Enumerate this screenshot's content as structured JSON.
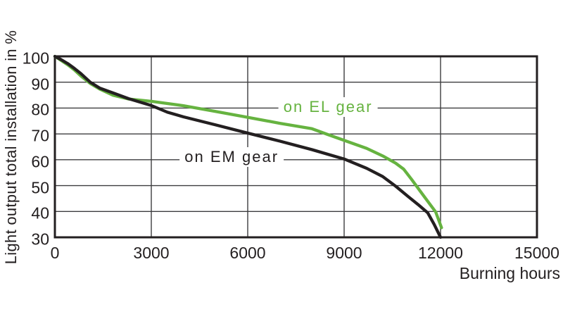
{
  "colors": {
    "background": "#ffffff",
    "grid": "#3d3d3f",
    "axis": "#231f20",
    "text": "#231f20"
  },
  "chart_data": {
    "type": "line",
    "title": "",
    "xlabel": "Burning hours",
    "ylabel": "Light output total installation in %",
    "xlim": [
      0,
      15000
    ],
    "ylim": [
      30,
      100
    ],
    "x_ticks": [
      0,
      3000,
      6000,
      9000,
      12000,
      15000
    ],
    "y_ticks": [
      100,
      90,
      80,
      70,
      60,
      50,
      40,
      30
    ],
    "grid": true,
    "legend_position": "inline-curve-labels",
    "series": [
      {
        "id": "el-gear",
        "name": "on EL gear",
        "color": "#66b340",
        "label_anchor": {
          "x": 8500,
          "y": 80.3
        },
        "points": [
          [
            0,
            100
          ],
          [
            200,
            98.4
          ],
          [
            400,
            96.7
          ],
          [
            600,
            94.8
          ],
          [
            810,
            92.4
          ],
          [
            1100,
            89.5
          ],
          [
            1400,
            87.3
          ],
          [
            1800,
            85.0
          ],
          [
            2300,
            83.5
          ],
          [
            3000,
            82.6
          ],
          [
            4000,
            80.9
          ],
          [
            5000,
            78.7
          ],
          [
            6000,
            76.4
          ],
          [
            7000,
            74.1
          ],
          [
            8000,
            72.0
          ],
          [
            8500,
            69.7
          ],
          [
            9000,
            67.5
          ],
          [
            9700,
            64.4
          ],
          [
            10200,
            61.5
          ],
          [
            10600,
            58.7
          ],
          [
            10850,
            56.4
          ],
          [
            11100,
            52.4
          ],
          [
            11500,
            45.6
          ],
          [
            11850,
            39.8
          ],
          [
            12030,
            33.7
          ]
        ]
      },
      {
        "id": "em-gear",
        "name": "on EM gear",
        "color": "#231f20",
        "label_anchor": {
          "x": 5500,
          "y": 61.0
        },
        "points": [
          [
            0,
            100
          ],
          [
            200,
            98.7
          ],
          [
            400,
            97.2
          ],
          [
            600,
            95.4
          ],
          [
            810,
            93.3
          ],
          [
            1100,
            90.0
          ],
          [
            1400,
            87.7
          ],
          [
            1800,
            85.9
          ],
          [
            2300,
            83.6
          ],
          [
            3000,
            81.0
          ],
          [
            3500,
            78.4
          ],
          [
            4000,
            76.6
          ],
          [
            5000,
            73.5
          ],
          [
            6000,
            70.3
          ],
          [
            7000,
            67.2
          ],
          [
            8000,
            63.9
          ],
          [
            9000,
            60.3
          ],
          [
            9700,
            56.7
          ],
          [
            10200,
            53.5
          ],
          [
            10600,
            49.8
          ],
          [
            11000,
            45.7
          ],
          [
            11300,
            42.7
          ],
          [
            11600,
            39.5
          ],
          [
            11800,
            35.0
          ],
          [
            12000,
            30.0
          ]
        ]
      }
    ]
  }
}
